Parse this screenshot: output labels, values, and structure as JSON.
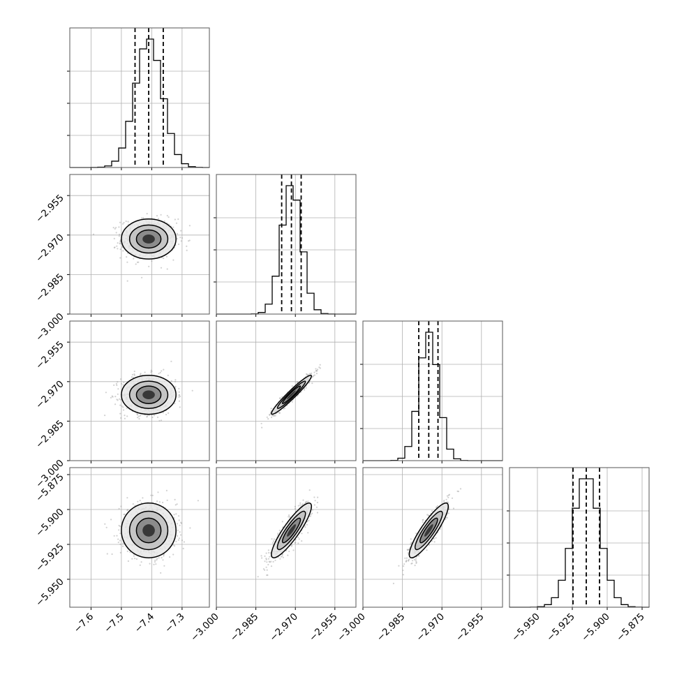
{
  "chart_data": {
    "type": "corner",
    "grid": true,
    "parameters": [
      {
        "id": "p0",
        "range": [
          -7.67,
          -7.21
        ],
        "median": -7.41,
        "quantiles": [
          -7.455,
          -7.41,
          -7.362
        ],
        "sd": 0.045,
        "ticks": [
          -7.6,
          -7.5,
          -7.4,
          -7.3
        ],
        "tick_labels": [
          "−7.6",
          "−7.5",
          "−7.4",
          "−7.3"
        ]
      },
      {
        "id": "p1",
        "range": [
          -3.0,
          -2.947
        ],
        "median": -2.9715,
        "quantiles": [
          -2.9752,
          -2.9715,
          -2.9678
        ],
        "sd": 0.0038,
        "ticks": [
          -3.0,
          -2.985,
          -2.97,
          -2.955
        ],
        "tick_labels": [
          "−3.000",
          "−2.985",
          "−2.970",
          "−2.955"
        ]
      },
      {
        "id": "p2",
        "range": [
          -3.0,
          -2.947
        ],
        "median": -2.975,
        "quantiles": [
          -2.9788,
          -2.975,
          -2.9715
        ],
        "sd": 0.0037,
        "ticks": [
          -3.0,
          -2.985,
          -2.97,
          -2.955
        ],
        "tick_labels": [
          "−3.000",
          "−2.985",
          "−2.970",
          "−2.955"
        ]
      },
      {
        "id": "p3",
        "range": [
          -5.97,
          -5.87
        ],
        "median": -5.915,
        "quantiles": [
          -5.9245,
          -5.915,
          -5.9055
        ],
        "sd": 0.0098,
        "ticks": [
          -5.95,
          -5.925,
          -5.9,
          -5.875
        ],
        "tick_labels": [
          "−5.950",
          "−5.925",
          "−5.900",
          "−5.875"
        ]
      }
    ],
    "correlations": {
      "1-0": 0.0,
      "2-0": 0.0,
      "2-1": 0.96,
      "3-0": 0.0,
      "3-1": 0.88,
      "3-2": 0.88
    },
    "hist_bins": 20,
    "quantile_levels": [
      0.16,
      0.5,
      0.84
    ]
  }
}
